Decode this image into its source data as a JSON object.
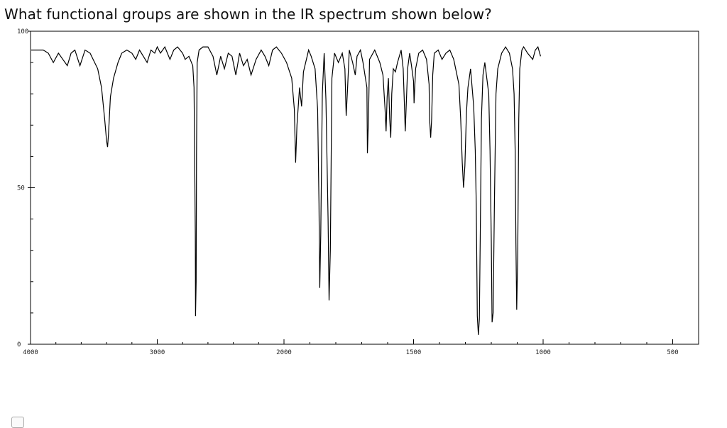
{
  "question": {
    "text": "What functional groups are shown in the IR spectrum shown below?"
  },
  "chart_data": {
    "type": "line",
    "title": "",
    "xlabel": "",
    "ylabel": "",
    "xlim": [
      4000,
      400
    ],
    "ylim": [
      0,
      100
    ],
    "x_ticks": [
      {
        "value": 4000,
        "label": "4000"
      },
      {
        "value": 3000,
        "label": "3000"
      },
      {
        "value": 2000,
        "label": "2000"
      },
      {
        "value": 1500,
        "label": "1500"
      },
      {
        "value": 1000,
        "label": "1000"
      },
      {
        "value": 500,
        "label": "500"
      }
    ],
    "y_ticks": [
      {
        "value": 100,
        "label": "100"
      },
      {
        "value": 50,
        "label": "50"
      },
      {
        "value": 0,
        "label": "0"
      }
    ],
    "grid": false,
    "series": [
      {
        "color": "#000000",
        "points": [
          [
            4000,
            94
          ],
          [
            3950,
            94
          ],
          [
            3900,
            94
          ],
          [
            3860,
            93
          ],
          [
            3820,
            90
          ],
          [
            3780,
            93
          ],
          [
            3745,
            91
          ],
          [
            3710,
            89
          ],
          [
            3680,
            93
          ],
          [
            3650,
            94
          ],
          [
            3610,
            89
          ],
          [
            3570,
            94
          ],
          [
            3530,
            93
          ],
          [
            3470,
            88
          ],
          [
            3440,
            82
          ],
          [
            3415,
            72
          ],
          [
            3400,
            65
          ],
          [
            3392,
            63
          ],
          [
            3385,
            67
          ],
          [
            3370,
            79
          ],
          [
            3345,
            85
          ],
          [
            3310,
            90
          ],
          [
            3280,
            93
          ],
          [
            3240,
            94
          ],
          [
            3200,
            93
          ],
          [
            3170,
            91
          ],
          [
            3140,
            94
          ],
          [
            3110,
            92
          ],
          [
            3080,
            90
          ],
          [
            3050,
            94
          ],
          [
            3020,
            93
          ],
          [
            3000,
            95
          ],
          [
            2975,
            93
          ],
          [
            2940,
            95
          ],
          [
            2900,
            91
          ],
          [
            2870,
            94
          ],
          [
            2840,
            95
          ],
          [
            2800,
            93
          ],
          [
            2780,
            91
          ],
          [
            2750,
            92
          ],
          [
            2720,
            89
          ],
          [
            2710,
            82
          ],
          [
            2705,
            60
          ],
          [
            2700,
            35
          ],
          [
            2698,
            9
          ],
          [
            2693,
            20
          ],
          [
            2690,
            60
          ],
          [
            2685,
            90
          ],
          [
            2670,
            94
          ],
          [
            2640,
            95
          ],
          [
            2600,
            95
          ],
          [
            2560,
            92
          ],
          [
            2530,
            86
          ],
          [
            2500,
            92
          ],
          [
            2470,
            88
          ],
          [
            2440,
            93
          ],
          [
            2410,
            92
          ],
          [
            2380,
            86
          ],
          [
            2350,
            93
          ],
          [
            2320,
            89
          ],
          [
            2290,
            91
          ],
          [
            2260,
            86
          ],
          [
            2220,
            91
          ],
          [
            2180,
            94
          ],
          [
            2150,
            92
          ],
          [
            2120,
            89
          ],
          [
            2090,
            94
          ],
          [
            2060,
            95
          ],
          [
            2020,
            93
          ],
          [
            1990,
            90
          ],
          [
            1970,
            85
          ],
          [
            1960,
            75
          ],
          [
            1955,
            58
          ],
          [
            1950,
            70
          ],
          [
            1940,
            82
          ],
          [
            1932,
            76
          ],
          [
            1925,
            87
          ],
          [
            1905,
            94
          ],
          [
            1895,
            92
          ],
          [
            1880,
            88
          ],
          [
            1870,
            75
          ],
          [
            1865,
            45
          ],
          [
            1862,
            18
          ],
          [
            1858,
            35
          ],
          [
            1852,
            80
          ],
          [
            1845,
            93
          ],
          [
            1838,
            78
          ],
          [
            1830,
            40
          ],
          [
            1826,
            14
          ],
          [
            1821,
            30
          ],
          [
            1815,
            85
          ],
          [
            1805,
            93
          ],
          [
            1790,
            90
          ],
          [
            1775,
            93
          ],
          [
            1765,
            88
          ],
          [
            1760,
            73
          ],
          [
            1755,
            81
          ],
          [
            1748,
            94
          ],
          [
            1735,
            90
          ],
          [
            1725,
            86
          ],
          [
            1718,
            92
          ],
          [
            1705,
            94
          ],
          [
            1695,
            90
          ],
          [
            1680,
            82
          ],
          [
            1678,
            61
          ],
          [
            1674,
            72
          ],
          [
            1670,
            91
          ],
          [
            1650,
            94
          ],
          [
            1630,
            90
          ],
          [
            1618,
            86
          ],
          [
            1610,
            75
          ],
          [
            1606,
            68
          ],
          [
            1602,
            79
          ],
          [
            1597,
            85
          ],
          [
            1592,
            72
          ],
          [
            1588,
            66
          ],
          [
            1584,
            80
          ],
          [
            1578,
            88
          ],
          [
            1570,
            87
          ],
          [
            1562,
            90
          ],
          [
            1548,
            94
          ],
          [
            1540,
            88
          ],
          [
            1535,
            76
          ],
          [
            1532,
            68
          ],
          [
            1528,
            77
          ],
          [
            1523,
            88
          ],
          [
            1515,
            93
          ],
          [
            1508,
            89
          ],
          [
            1500,
            84
          ],
          [
            1498,
            77
          ],
          [
            1492,
            88
          ],
          [
            1480,
            93
          ],
          [
            1465,
            94
          ],
          [
            1450,
            91
          ],
          [
            1440,
            83
          ],
          [
            1438,
            72
          ],
          [
            1434,
            66
          ],
          [
            1430,
            72
          ],
          [
            1426,
            86
          ],
          [
            1420,
            93
          ],
          [
            1405,
            94
          ],
          [
            1390,
            91
          ],
          [
            1375,
            93
          ],
          [
            1360,
            94
          ],
          [
            1345,
            91
          ],
          [
            1325,
            83
          ],
          [
            1318,
            72
          ],
          [
            1312,
            58
          ],
          [
            1307,
            50
          ],
          [
            1302,
            57
          ],
          [
            1296,
            74
          ],
          [
            1290,
            82
          ],
          [
            1280,
            88
          ],
          [
            1268,
            76
          ],
          [
            1262,
            62
          ],
          [
            1258,
            45
          ],
          [
            1254,
            9
          ],
          [
            1250,
            3
          ],
          [
            1246,
            8
          ],
          [
            1242,
            40
          ],
          [
            1238,
            72
          ],
          [
            1232,
            86
          ],
          [
            1225,
            90
          ],
          [
            1210,
            80
          ],
          [
            1205,
            62
          ],
          [
            1200,
            33
          ],
          [
            1197,
            7
          ],
          [
            1193,
            10
          ],
          [
            1188,
            45
          ],
          [
            1182,
            80
          ],
          [
            1175,
            88
          ],
          [
            1160,
            93
          ],
          [
            1145,
            95
          ],
          [
            1130,
            93
          ],
          [
            1118,
            88
          ],
          [
            1112,
            80
          ],
          [
            1108,
            62
          ],
          [
            1105,
            32
          ],
          [
            1102,
            11
          ],
          [
            1098,
            28
          ],
          [
            1094,
            72
          ],
          [
            1090,
            88
          ],
          [
            1082,
            94
          ],
          [
            1075,
            95
          ],
          [
            1060,
            93
          ],
          [
            1040,
            91
          ],
          [
            1030,
            94
          ],
          [
            1020,
            95
          ],
          [
            1010,
            92
          ]
        ]
      }
    ]
  }
}
